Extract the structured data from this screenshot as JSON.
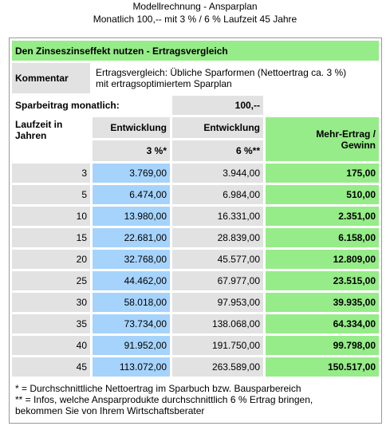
{
  "header": {
    "title": "Modellrechnung - Ansparplan",
    "subtitle": "Monatlich 100,-- mit 3 % / 6 % Laufzeit 45 Jahre"
  },
  "table": {
    "caption": "Den Zinseszinseffekt nutzen - Ertragsvergleich",
    "comment_label": "Kommentar",
    "comment_text": [
      "Ertragsvergleich: Übliche Sparformen (Nettoertrag ca. 3 %)",
      "mit ertragsoptimiertem Sparplan"
    ],
    "savings_label": "Sparbeitrag monatlich:",
    "savings_value": "100,--",
    "columns": [
      [
        "Laufzeit in",
        "Jahren"
      ],
      [
        "Entwicklung",
        "3 %*"
      ],
      [
        "Entwicklung",
        "6 %**"
      ],
      [
        "Mehr-Ertrag /",
        "Gewinn"
      ]
    ],
    "rows": [
      [
        "3",
        "3.769,00",
        "3.944,00",
        "175,00"
      ],
      [
        "5",
        "6.474,00",
        "6.984,00",
        "510,00"
      ],
      [
        "10",
        "13.980,00",
        "16.331,00",
        "2.351,00"
      ],
      [
        "15",
        "22.681,00",
        "28.839,00",
        "6.158,00"
      ],
      [
        "20",
        "32.768,00",
        "45.577,00",
        "12.809,00"
      ],
      [
        "25",
        "44.462,00",
        "67.977,00",
        "23.515,00"
      ],
      [
        "30",
        "58.018,00",
        "97.953,00",
        "39.935,00"
      ],
      [
        "35",
        "73.734,00",
        "138.068,00",
        "64.334,00"
      ],
      [
        "40",
        "91.952,00",
        "191.750,00",
        "99.798,00"
      ],
      [
        "45",
        "113.072,00",
        "263.589,00",
        "150.517,00"
      ]
    ],
    "footnotes": [
      "* = Durchschnittliche Nettoertrag im Sparbuch bzw. Bausparbereich",
      "** = Infos, welche Ansparprodukte durchschnittlich 6 % Ertrag bringen,",
      "bekommen Sie von Ihrem Wirtschaftsberater"
    ]
  }
}
